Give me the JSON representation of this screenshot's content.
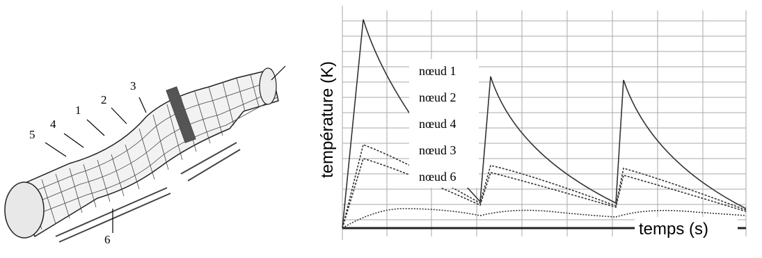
{
  "figure": {
    "mesh_labels": [
      "5",
      "4",
      "1",
      "2",
      "3",
      "6"
    ],
    "plot": {
      "y_label": "température (K)",
      "x_label": "temps (s)",
      "curve_labels": [
        "nœud 1",
        "nœud 2",
        "nœud 4",
        "nœud 3",
        "nœud 6"
      ]
    }
  }
}
